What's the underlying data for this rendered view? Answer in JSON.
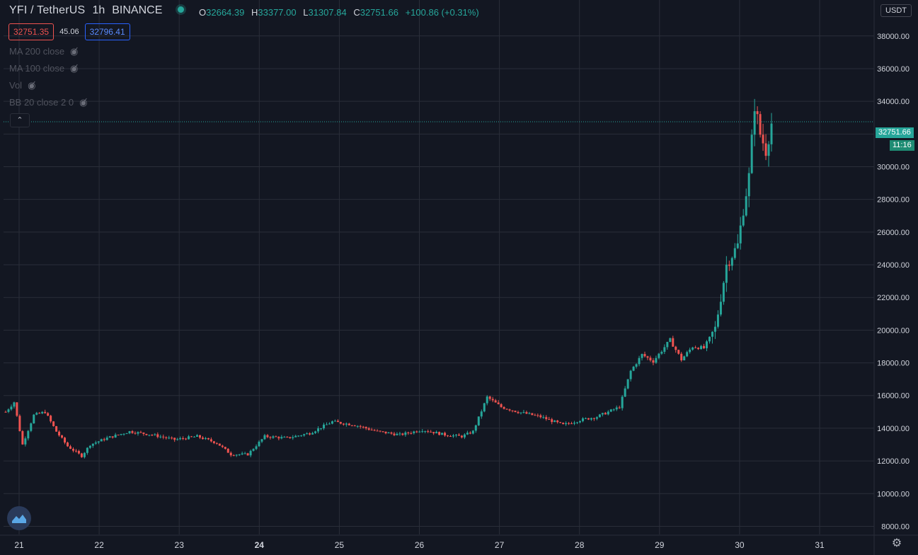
{
  "header": {
    "symbol": "YFI / TetherUS",
    "timeframe": "1h",
    "exchange": "BINANCE",
    "ohlc": {
      "o_label": "O",
      "o": "32664.39",
      "h_label": "H",
      "h": "33377.00",
      "l_label": "L",
      "l": "31307.84",
      "c_label": "C",
      "c": "32751.66",
      "change": "+100.86 (+0.31%)"
    },
    "sell_price": "32751.35",
    "spread": "45.06",
    "buy_price": "32796.41"
  },
  "indicators": [
    {
      "label": "MA 200 close"
    },
    {
      "label": "MA 100 close"
    },
    {
      "label": "Vol"
    },
    {
      "label": "BB 20 close 2 0"
    }
  ],
  "currency_button": "USDT",
  "last_price_tag": "32751.66",
  "countdown_tag": "11:16",
  "colors": {
    "background": "#131722",
    "up": "#26a69a",
    "down": "#ef5350",
    "grid": "#2a2e39",
    "text": "#d1d4dc"
  },
  "icons": [
    "eye-hidden-icon",
    "chevron-up-icon",
    "tradingview-logo-icon",
    "gear-icon"
  ],
  "chart_data": {
    "type": "candlestick",
    "interval": "1h",
    "x_ticks": [
      "21",
      "22",
      "23",
      "24",
      "25",
      "26",
      "27",
      "28",
      "29",
      "30",
      "31"
    ],
    "y_ticks": [
      8000,
      10000,
      12000,
      14000,
      16000,
      18000,
      20000,
      22000,
      24000,
      26000,
      28000,
      30000,
      32000,
      34000,
      36000,
      38000
    ],
    "ylim": [
      7500,
      40200
    ],
    "last_close": 32751.66,
    "grid": true,
    "close_path_estimate": [
      [
        0,
        15000
      ],
      [
        3,
        15600
      ],
      [
        6,
        13000
      ],
      [
        10,
        14800
      ],
      [
        14,
        15000
      ],
      [
        18,
        13800
      ],
      [
        22,
        12900
      ],
      [
        27,
        12300
      ],
      [
        30,
        13000
      ],
      [
        36,
        13400
      ],
      [
        44,
        13800
      ],
      [
        52,
        13600
      ],
      [
        60,
        13300
      ],
      [
        68,
        13500
      ],
      [
        75,
        13100
      ],
      [
        80,
        12400
      ],
      [
        86,
        12400
      ],
      [
        92,
        13500
      ],
      [
        100,
        13400
      ],
      [
        108,
        13700
      ],
      [
        116,
        14400
      ],
      [
        124,
        14200
      ],
      [
        132,
        13800
      ],
      [
        140,
        13600
      ],
      [
        148,
        13900
      ],
      [
        156,
        13600
      ],
      [
        162,
        13500
      ],
      [
        166,
        13800
      ],
      [
        171,
        15900
      ],
      [
        176,
        15300
      ],
      [
        182,
        15000
      ],
      [
        190,
        14700
      ],
      [
        198,
        14200
      ],
      [
        204,
        14500
      ],
      [
        210,
        14700
      ],
      [
        218,
        15300
      ],
      [
        222,
        17500
      ],
      [
        226,
        18500
      ],
      [
        230,
        18100
      ],
      [
        236,
        19400
      ],
      [
        240,
        18200
      ],
      [
        244,
        19000
      ],
      [
        248,
        18900
      ],
      [
        252,
        20100
      ],
      [
        254,
        22000
      ],
      [
        256,
        24000
      ],
      [
        260,
        25200
      ],
      [
        262,
        27400
      ],
      [
        264,
        29400
      ],
      [
        266,
        33800
      ],
      [
        268,
        32000
      ],
      [
        270,
        31000
      ],
      [
        272,
        32664
      ]
    ]
  }
}
